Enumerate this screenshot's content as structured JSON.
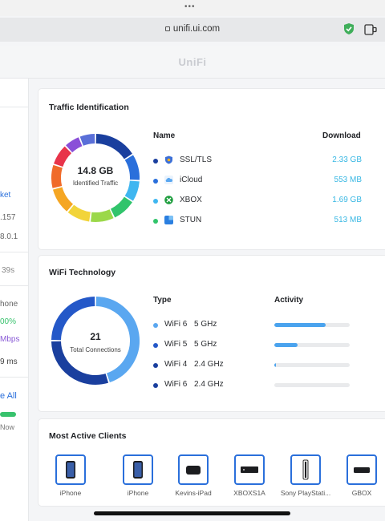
{
  "browser": {
    "url": "unifi.ui.com"
  },
  "header": {
    "brand": "UniFi"
  },
  "left_panel": {
    "items": [
      "ket",
      ".157",
      "8.0.1",
      "39s",
      "hone",
      "00%",
      "Mbps",
      "9 ms",
      "e All",
      "Now"
    ]
  },
  "traffic": {
    "title": "Traffic Identification",
    "col_name": "Name",
    "col_download": "Download",
    "total": "14.8 GB",
    "total_label": "Identified Traffic",
    "rows": [
      {
        "name": "SSL/TLS",
        "value": "2.33 GB",
        "bullet": "#1a3f9e",
        "icon": "shield-app-icon",
        "icon_color": "#3b6fd8"
      },
      {
        "name": "iCloud",
        "value": "553 MB",
        "bullet": "#2a6fdb",
        "icon": "cloud-app-icon",
        "icon_color": "#5aa7f0"
      },
      {
        "name": "XBOX",
        "value": "1.69 GB",
        "bullet": "#3fb6f0",
        "icon": "xbox-app-icon",
        "icon_color": "#1e9e3e"
      },
      {
        "name": "STUN",
        "value": "513 MB",
        "bullet": "#31c46b",
        "icon": "stun-app-icon",
        "icon_color": "#2b7fe0"
      }
    ]
  },
  "wifi": {
    "title": "WiFi Technology",
    "col_type": "Type",
    "col_activity": "Activity",
    "total": "21",
    "total_label": "Total Connections",
    "rows": [
      {
        "name": "WiFi 6",
        "band": "5 GHz",
        "bullet": "#5aa7f0",
        "activity": 0.68
      },
      {
        "name": "WiFi 5",
        "band": "5 GHz",
        "bullet": "#2458c8",
        "activity": 0.31
      },
      {
        "name": "WiFi 4",
        "band": "2.4 GHz",
        "bullet": "#1a3f9e",
        "activity": 0.02
      },
      {
        "name": "WiFi 6",
        "band": "2.4 GHz",
        "bullet": "#1a3f9e",
        "activity": 0.0
      }
    ]
  },
  "clients": {
    "title": "Most Active Clients",
    "items": [
      {
        "name": "iPhone",
        "icon": "iphone-icon"
      },
      {
        "name": "iPhone",
        "icon": "iphone-icon"
      },
      {
        "name": "Kevins-iPad",
        "icon": "apple-tv-icon"
      },
      {
        "name": "XBOXS1A",
        "icon": "xbox-console-icon"
      },
      {
        "name": "Sony PlayStati...",
        "icon": "playstation-icon"
      },
      {
        "name": "GBOX",
        "icon": "console-icon"
      }
    ]
  },
  "colors": {
    "accent": "#2a6fdb",
    "value_text": "#37b7e3",
    "success": "#38c26d"
  }
}
